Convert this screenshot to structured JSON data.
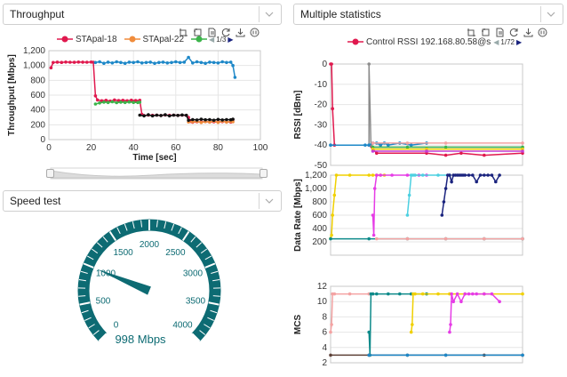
{
  "panels": {
    "throughput": {
      "title": "Throughput"
    },
    "speed": {
      "title": "Speed test"
    },
    "multi": {
      "title": "Multiple statistics"
    }
  },
  "throughput_legend": {
    "items": [
      {
        "name": "STApal-18",
        "color": "#e0194e"
      },
      {
        "name": "STApal-22",
        "color": "#f08c3c"
      },
      {
        "name": "",
        "color": "#3cb44b"
      }
    ],
    "page": "1/3"
  },
  "multi_legend": {
    "items": [
      {
        "name": "Control RSSI 192.168.80.58@s",
        "color": "#e0194e"
      }
    ],
    "page": "1/72"
  },
  "speedometer": {
    "labels": [
      "0",
      "500",
      "1000",
      "1500",
      "2000",
      "2500",
      "3000",
      "3500",
      "4000"
    ],
    "value": 998,
    "unit": "Mbps",
    "readout": "998 Mbps",
    "max": 4000,
    "color": "#0d6b73"
  },
  "chart_data": [
    {
      "type": "line",
      "ylabel": "Throughput [Mbps]",
      "xlabel": "Time [sec]",
      "xlim": [
        0,
        100
      ],
      "ylim": [
        0,
        1200
      ],
      "xticks": [
        "0",
        "20",
        "40",
        "60",
        "80",
        "100"
      ],
      "yticks": [
        "0",
        "200",
        "400",
        "600",
        "800",
        "1,000",
        "1,200"
      ],
      "grid": true,
      "series": [
        {
          "name": "STApal-18",
          "color": "#e0194e",
          "x": [
            1,
            2,
            4,
            6,
            8,
            10,
            12,
            14,
            16,
            18,
            20,
            21,
            22,
            23,
            25,
            27,
            29,
            31,
            33,
            35,
            37,
            39,
            41,
            43,
            44,
            45,
            47,
            49,
            51,
            53,
            55,
            57,
            59,
            61,
            63,
            65,
            66,
            67,
            68,
            70,
            72,
            74,
            76,
            78,
            80,
            82,
            84,
            86,
            87
          ],
          "y": [
            970,
            1040,
            1045,
            1042,
            1046,
            1044,
            1043,
            1047,
            1045,
            1044,
            1046,
            1044,
            590,
            535,
            525,
            530,
            520,
            535,
            528,
            530,
            525,
            532,
            528,
            530,
            340,
            325,
            330,
            328,
            330,
            325,
            332,
            328,
            330,
            326,
            330,
            328,
            300,
            245,
            235,
            240,
            238,
            242,
            236,
            240,
            238,
            242,
            240,
            236,
            270
          ]
        },
        {
          "name": "STApal-22",
          "color": "#f08c3c",
          "x": [
            66,
            68,
            70,
            72,
            74,
            76,
            78,
            80,
            82,
            84,
            86,
            87
          ],
          "y": [
            238,
            240,
            245,
            230,
            242,
            236,
            250,
            232,
            248,
            235,
            245,
            240
          ]
        },
        {
          "name": "",
          "color": "#3cb44b",
          "x": [
            22,
            24,
            26,
            28,
            30,
            32,
            34,
            36,
            38,
            40,
            42,
            43
          ],
          "y": [
            480,
            495,
            505,
            500,
            510,
            498,
            505,
            500,
            508,
            502,
            500,
            505
          ]
        },
        {
          "name": "",
          "color": "#111111",
          "x": [
            43,
            45,
            47,
            49,
            51,
            53,
            55,
            57,
            59,
            61,
            63,
            65,
            66,
            68,
            70,
            72,
            74,
            76,
            78,
            80,
            82,
            84,
            86,
            87
          ],
          "y": [
            330,
            320,
            335,
            320,
            330,
            325,
            335,
            320,
            330,
            326,
            332,
            328,
            260,
            270,
            265,
            275,
            268,
            270,
            262,
            272,
            265,
            270,
            268,
            275
          ]
        },
        {
          "name": "",
          "color": "#1e88c8",
          "x": [
            22,
            24,
            26,
            28,
            30,
            32,
            34,
            36,
            38,
            40,
            42,
            44,
            46,
            48,
            50,
            52,
            54,
            56,
            58,
            60,
            62,
            64,
            66,
            68,
            70,
            72,
            74,
            76,
            78,
            80,
            82,
            84,
            86,
            87,
            88
          ],
          "y": [
            1040,
            1050,
            1030,
            1045,
            1035,
            1050,
            1040,
            1030,
            1045,
            1040,
            1050,
            1035,
            1040,
            1045,
            1030,
            1040,
            1045,
            1035,
            1040,
            1050,
            1040,
            1045,
            1110,
            1035,
            1050,
            1040,
            1030,
            1045,
            1040,
            1035,
            1050,
            1040,
            1045,
            1000,
            840
          ]
        }
      ]
    },
    {
      "type": "line",
      "ylabel": "RSSI [dBm]",
      "ylim": [
        -50,
        0
      ],
      "yticks": [
        "0",
        "-10",
        "-20",
        "-30",
        "-40",
        "-50"
      ],
      "xlim": [
        0,
        100
      ],
      "series": [
        {
          "name": "Control RSSI 192.168.80.58@s",
          "color": "#e0194e",
          "x": [
            0,
            0.5,
            1,
            2,
            20,
            22,
            24,
            50,
            60,
            68,
            80,
            100
          ],
          "y": [
            0,
            0,
            -22,
            -40,
            -40,
            -42,
            -44,
            -44,
            -45,
            -44,
            -45,
            -44
          ]
        },
        {
          "name": "",
          "color": "#8c8c8c",
          "x": [
            0,
            20,
            20,
            21,
            22,
            100
          ],
          "y": [
            -40,
            -40,
            0,
            -40,
            -41,
            -41
          ]
        },
        {
          "name": "",
          "color": "#1e88c8",
          "x": [
            0,
            18,
            20,
            22,
            24,
            26,
            28,
            30,
            36,
            42,
            50
          ],
          "y": [
            -40,
            -40,
            -40,
            -39,
            -39,
            -40,
            -39,
            -40,
            -39,
            -40,
            -39
          ]
        },
        {
          "name": "",
          "color": "#f4a3a3",
          "x": [
            22,
            40,
            60,
            100
          ],
          "y": [
            -39,
            -39,
            -39,
            -39
          ]
        },
        {
          "name": "",
          "color": "#3cb44b",
          "x": [
            22,
            40,
            60,
            100
          ],
          "y": [
            -41,
            -41,
            -41,
            -41
          ]
        },
        {
          "name": "",
          "color": "#f0d000",
          "x": [
            22,
            50,
            100
          ],
          "y": [
            -42,
            -42,
            -42
          ]
        },
        {
          "name": "",
          "color": "#c43cd6",
          "x": [
            22,
            50,
            100
          ],
          "y": [
            -43,
            -43,
            -43
          ]
        }
      ]
    },
    {
      "type": "line",
      "ylabel": "Data Rate [Mbps]",
      "ylim": [
        0,
        1200
      ],
      "yticks": [
        "200",
        "400",
        "600",
        "800",
        "1,000",
        "1,200"
      ],
      "xlim": [
        0,
        100
      ],
      "series": [
        {
          "name": "",
          "color": "#f0d000",
          "x": [
            0,
            0.5,
            1,
            2,
            3,
            10,
            20,
            22,
            24,
            26,
            28
          ],
          "y": [
            250,
            300,
            600,
            900,
            1200,
            1200,
            1200,
            1200,
            1200,
            1200,
            1200
          ]
        },
        {
          "name": "",
          "color": "#e63ce6",
          "x": [
            22,
            22.5,
            23,
            24,
            26,
            32,
            40,
            46,
            50
          ],
          "y": [
            600,
            300,
            1000,
            1200,
            1200,
            1200,
            1200,
            1200,
            1200
          ]
        },
        {
          "name": "",
          "color": "#4dd0e1",
          "x": [
            40,
            41,
            42,
            43,
            44,
            48,
            56,
            62
          ],
          "y": [
            600,
            900,
            1200,
            1200,
            1200,
            1200,
            1200,
            1200
          ]
        },
        {
          "name": "",
          "color": "#1a237e",
          "x": [
            58,
            59,
            60,
            61,
            62,
            63,
            64,
            65,
            66,
            67,
            68,
            69,
            70,
            72,
            74,
            76,
            78,
            80,
            82,
            84,
            86,
            88
          ],
          "y": [
            600,
            800,
            1000,
            1200,
            1200,
            1100,
            1200,
            1200,
            1200,
            1200,
            1200,
            1200,
            1200,
            1200,
            1200,
            1100,
            1200,
            1200,
            1200,
            1200,
            1100,
            1200
          ]
        },
        {
          "name": "",
          "color": "#0e8a8a",
          "x": [
            0,
            20,
            40,
            60,
            80,
            100
          ],
          "y": [
            245,
            245,
            245,
            245,
            245,
            245
          ]
        },
        {
          "name": "",
          "color": "#f4a3a3",
          "x": [
            24,
            40,
            60,
            80,
            100
          ],
          "y": [
            245,
            245,
            245,
            245,
            245
          ]
        }
      ]
    },
    {
      "type": "line",
      "ylabel": "MCS",
      "ylim": [
        2,
        12
      ],
      "yticks": [
        "2",
        "4",
        "6",
        "8",
        "10",
        "12"
      ],
      "xlim": [
        0,
        100
      ],
      "series": [
        {
          "name": "",
          "color": "#f4a3a3",
          "x": [
            0,
            0.5,
            1,
            2,
            10,
            20,
            22
          ],
          "y": [
            6,
            7,
            11,
            11,
            11,
            11,
            11
          ]
        },
        {
          "name": "",
          "color": "#0e8a8a",
          "x": [
            20,
            20.5,
            21,
            22,
            24,
            30,
            36,
            42,
            50
          ],
          "y": [
            6,
            3,
            11,
            11,
            11,
            11,
            11,
            11,
            11
          ]
        },
        {
          "name": "",
          "color": "#f0d000",
          "x": [
            42,
            42.5,
            43,
            44,
            48,
            56,
            62,
            70,
            80,
            100
          ],
          "y": [
            6,
            7,
            11,
            11,
            11,
            11,
            11,
            11,
            11,
            11
          ]
        },
        {
          "name": "",
          "color": "#e63ce6",
          "x": [
            62,
            62.5,
            63,
            64,
            66,
            68,
            70,
            72,
            74,
            76,
            80,
            84,
            88
          ],
          "y": [
            6,
            7,
            11,
            10,
            11,
            10,
            11,
            11,
            11,
            11,
            11,
            11,
            10
          ]
        },
        {
          "name": "",
          "color": "#5d4037",
          "x": [
            0,
            20,
            40,
            60,
            80,
            100
          ],
          "y": [
            3,
            3,
            3,
            3,
            3,
            3
          ]
        },
        {
          "name": "",
          "color": "#1e88c8",
          "x": [
            20,
            40,
            60,
            100
          ],
          "y": [
            3,
            3,
            3,
            3
          ]
        }
      ]
    }
  ]
}
